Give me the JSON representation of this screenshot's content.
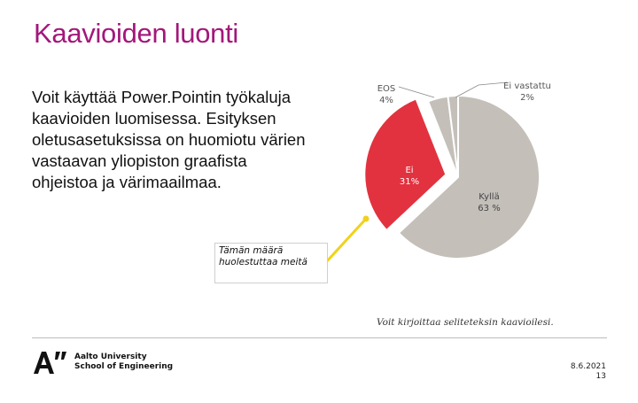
{
  "slide": {
    "title": "Kaavioiden luonti",
    "body": "Voit käyttää Power.Pointin työkaluja kaavioiden luomisessa. Esityksen oletusasetuksissa on huomiotu värien vastaavan yliopiston graafista ohjeistoa ja värimaailmaa.",
    "note": "Tämän määrä huolestuttaa meitä",
    "caption": "Voit kirjoittaa seliteteksin kaavioilesi.",
    "date": "8.6.2021",
    "page": "13"
  },
  "logo": {
    "mark": "A”",
    "line1": "Aalto University",
    "line2": "School of Engineering"
  },
  "colors": {
    "title": "#a3177a",
    "kylla": "#c4bfb9",
    "ei": "#e2323f",
    "eos": "#c4bfb9",
    "ei_vastattu": "#c4bfb9",
    "callout": "#f0d21a"
  },
  "chart_data": {
    "type": "pie",
    "categories": [
      "Kyllä",
      "Ei",
      "EOS",
      "Ei vastattu"
    ],
    "values": [
      63,
      31,
      4,
      2
    ],
    "labels": [
      {
        "name": "Kyllä",
        "value": "63 %"
      },
      {
        "name": "Ei",
        "value": "31%"
      },
      {
        "name": "EOS",
        "value": "4%"
      },
      {
        "name": "Ei vastattu",
        "value": "2%"
      }
    ],
    "exploded": [
      "Ei"
    ]
  }
}
